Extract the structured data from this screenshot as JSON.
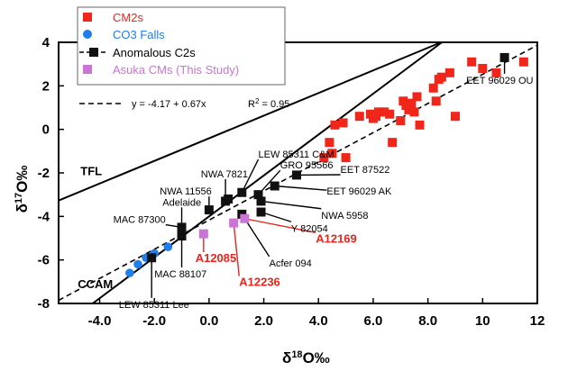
{
  "chart_data": {
    "type": "scatter",
    "xlabel": {
      "main": "δ",
      "sup": "18",
      "rest": "O‰"
    },
    "ylabel": {
      "main": "δ",
      "sup": "17",
      "rest": "O‰"
    },
    "xlim": [
      -5.5,
      12
    ],
    "ylim": [
      -8,
      4
    ],
    "xticks": [
      {
        "v": -4,
        "t": "-4.0"
      },
      {
        "v": -2,
        "t": "-2.0"
      },
      {
        "v": 0,
        "t": "0.0"
      },
      {
        "v": 2,
        "t": "2.0"
      },
      {
        "v": 4,
        "t": "4.0"
      },
      {
        "v": 6,
        "t": "6.0"
      },
      {
        "v": 8,
        "t": "8.0"
      },
      {
        "v": 10,
        "t": "10"
      },
      {
        "v": 12,
        "t": "12"
      }
    ],
    "yticks": [
      {
        "v": 4,
        "t": "4"
      },
      {
        "v": 2,
        "t": "2"
      },
      {
        "v": 0,
        "t": "0"
      },
      {
        "v": -2,
        "t": "-2"
      },
      {
        "v": -4,
        "t": "-4"
      },
      {
        "v": -6,
        "t": "-6"
      },
      {
        "v": -8,
        "t": "-8"
      }
    ],
    "grid": false,
    "legend_position": "top-left",
    "colors": {
      "cm2s": "#f0261b",
      "co3": "#1f7ee8",
      "c2": "#111111",
      "asuka": "#cc73d6"
    },
    "series": [
      {
        "name": "CM2s",
        "marker": "square",
        "color": "#f0261b",
        "points": [
          [
            4.2,
            -1.3
          ],
          [
            4.4,
            -0.6
          ],
          [
            4.5,
            -1.1
          ],
          [
            4.6,
            0.2
          ],
          [
            4.9,
            0.3
          ],
          [
            5.0,
            -1.3
          ],
          [
            5.5,
            0.6
          ],
          [
            5.9,
            0.7
          ],
          [
            6.0,
            0.5
          ],
          [
            6.1,
            0.6
          ],
          [
            6.2,
            0.8
          ],
          [
            6.4,
            0.8
          ],
          [
            6.6,
            0.7
          ],
          [
            6.7,
            -0.6
          ],
          [
            7.0,
            0.4
          ],
          [
            7.1,
            1.3
          ],
          [
            7.2,
            1.1
          ],
          [
            7.3,
            0.9
          ],
          [
            7.4,
            1.2
          ],
          [
            7.5,
            0.8
          ],
          [
            7.6,
            1.5
          ],
          [
            7.7,
            0.2
          ],
          [
            8.2,
            1.9
          ],
          [
            8.3,
            1.3
          ],
          [
            8.4,
            2.3
          ],
          [
            8.5,
            2.4
          ],
          [
            8.8,
            2.6
          ],
          [
            9.0,
            0.6
          ],
          [
            9.6,
            3.1
          ],
          [
            10.0,
            2.8
          ],
          [
            10.5,
            2.6
          ],
          [
            11.5,
            3.1
          ]
        ]
      },
      {
        "name": "CO3 Falls",
        "marker": "circle",
        "color": "#1f7ee8",
        "points": [
          [
            -2.9,
            -6.6
          ],
          [
            -2.6,
            -6.2
          ],
          [
            -2.3,
            -5.9
          ],
          [
            -2.0,
            -5.7
          ],
          [
            -1.5,
            -5.4
          ]
        ]
      },
      {
        "name": "Anomalous C2s",
        "marker": "square",
        "color": "#111111",
        "points": [
          [
            -2.1,
            -5.9
          ],
          [
            -1.0,
            -4.9
          ],
          [
            -1.0,
            -4.5
          ],
          [
            0.0,
            -3.7
          ],
          [
            0.6,
            -3.3
          ],
          [
            0.7,
            -3.2
          ],
          [
            1.2,
            -2.9
          ],
          [
            1.2,
            -3.9
          ],
          [
            1.8,
            -3.0
          ],
          [
            1.9,
            -3.3
          ],
          [
            1.9,
            -3.8
          ],
          [
            2.4,
            -2.6
          ],
          [
            3.2,
            -2.1
          ],
          [
            10.8,
            3.3
          ]
        ]
      },
      {
        "name": "Asuka CMs (This Study)",
        "marker": "square",
        "color": "#cc73d6",
        "points": [
          [
            -0.2,
            -4.8
          ],
          [
            0.9,
            -4.3
          ],
          [
            1.3,
            -4.1
          ]
        ]
      }
    ],
    "lines": [
      {
        "name": "TFL",
        "slope": 0.52,
        "intercept": -0.41
      },
      {
        "name": "CCAM",
        "slope": 0.94,
        "intercept": -4.0
      },
      {
        "name": "Anomalous C2s",
        "slope": 0.67,
        "intercept": -4.17,
        "dashed": true
      }
    ],
    "fit_equation": "y = -4.17 + 0.67x",
    "fit_r2_label": "R",
    "fit_r2_sup": "2",
    "fit_r2_value": " = 0.95",
    "annotations": [
      {
        "text": "EET 96029 OU",
        "color": "black",
        "label_x": 9.4,
        "label_y": 2.1,
        "pt": [
          10.8,
          3.3
        ]
      },
      {
        "text": "LEW 85311 C&M",
        "color": "black",
        "label_x": 1.8,
        "label_y": -1.3,
        "pt": [
          1.2,
          -2.9
        ]
      },
      {
        "text": "NWA 7821",
        "color": "black",
        "label_x": -0.3,
        "label_y": -2.2,
        "pt": [
          0.6,
          -3.2
        ]
      },
      {
        "text": "GRO 95566",
        "color": "black",
        "label_x": 2.6,
        "label_y": -1.8,
        "pt": [
          1.8,
          -3.0
        ]
      },
      {
        "text": "EET 87522",
        "color": "black",
        "label_x": 4.8,
        "label_y": -2.0,
        "pt": [
          3.2,
          -2.1
        ]
      },
      {
        "text": "NWA 11556",
        "color": "black",
        "label_x": -1.8,
        "label_y": -3.0,
        "pt": [
          0.0,
          -3.6
        ]
      },
      {
        "text": "EET 96029 AK",
        "color": "black",
        "label_x": 4.3,
        "label_y": -3.0,
        "pt": [
          2.4,
          -2.6
        ]
      },
      {
        "text": "Adelaide",
        "color": "black",
        "label_x": -1.7,
        "label_y": -3.5,
        "pt": [
          -1.0,
          -4.4
        ]
      },
      {
        "text": "NWA 5958",
        "color": "black",
        "label_x": 4.1,
        "label_y": -4.1,
        "pt": [
          1.9,
          -3.3
        ]
      },
      {
        "text": "MAC 87300",
        "color": "black",
        "label_x": -3.5,
        "label_y": -4.3,
        "pt": [
          -1.0,
          -4.5
        ]
      },
      {
        "text": "Y 82054",
        "color": "black",
        "label_x": 3.0,
        "label_y": -4.7,
        "pt": [
          1.9,
          -3.8
        ]
      },
      {
        "text": "A12169",
        "color": "red",
        "label_x": 3.9,
        "label_y": -5.2,
        "pt": [
          1.3,
          -4.1
        ]
      },
      {
        "text": "A12085",
        "color": "red",
        "label_x": -0.5,
        "label_y": -6.1,
        "pt": [
          -0.2,
          -4.8
        ]
      },
      {
        "text": "Acfer 094",
        "color": "black",
        "label_x": 2.2,
        "label_y": -6.3,
        "pt": [
          1.2,
          -3.9
        ]
      },
      {
        "text": "MAC 88107",
        "color": "black",
        "label_x": -2.0,
        "label_y": -6.8,
        "pt": [
          -1.0,
          -4.9
        ]
      },
      {
        "text": "A12236",
        "color": "red",
        "label_x": 1.1,
        "label_y": -7.2,
        "pt": [
          0.9,
          -4.3
        ]
      },
      {
        "text": "LEW 85311 Lee",
        "color": "black",
        "label_x": -3.3,
        "label_y": -8.2,
        "pt": [
          -2.1,
          -5.9
        ]
      }
    ],
    "line_labels": [
      {
        "text": "TFL",
        "x": -4.7,
        "y": -2.1
      },
      {
        "text": "CCAM",
        "x": -4.8,
        "y": -7.3
      }
    ]
  }
}
